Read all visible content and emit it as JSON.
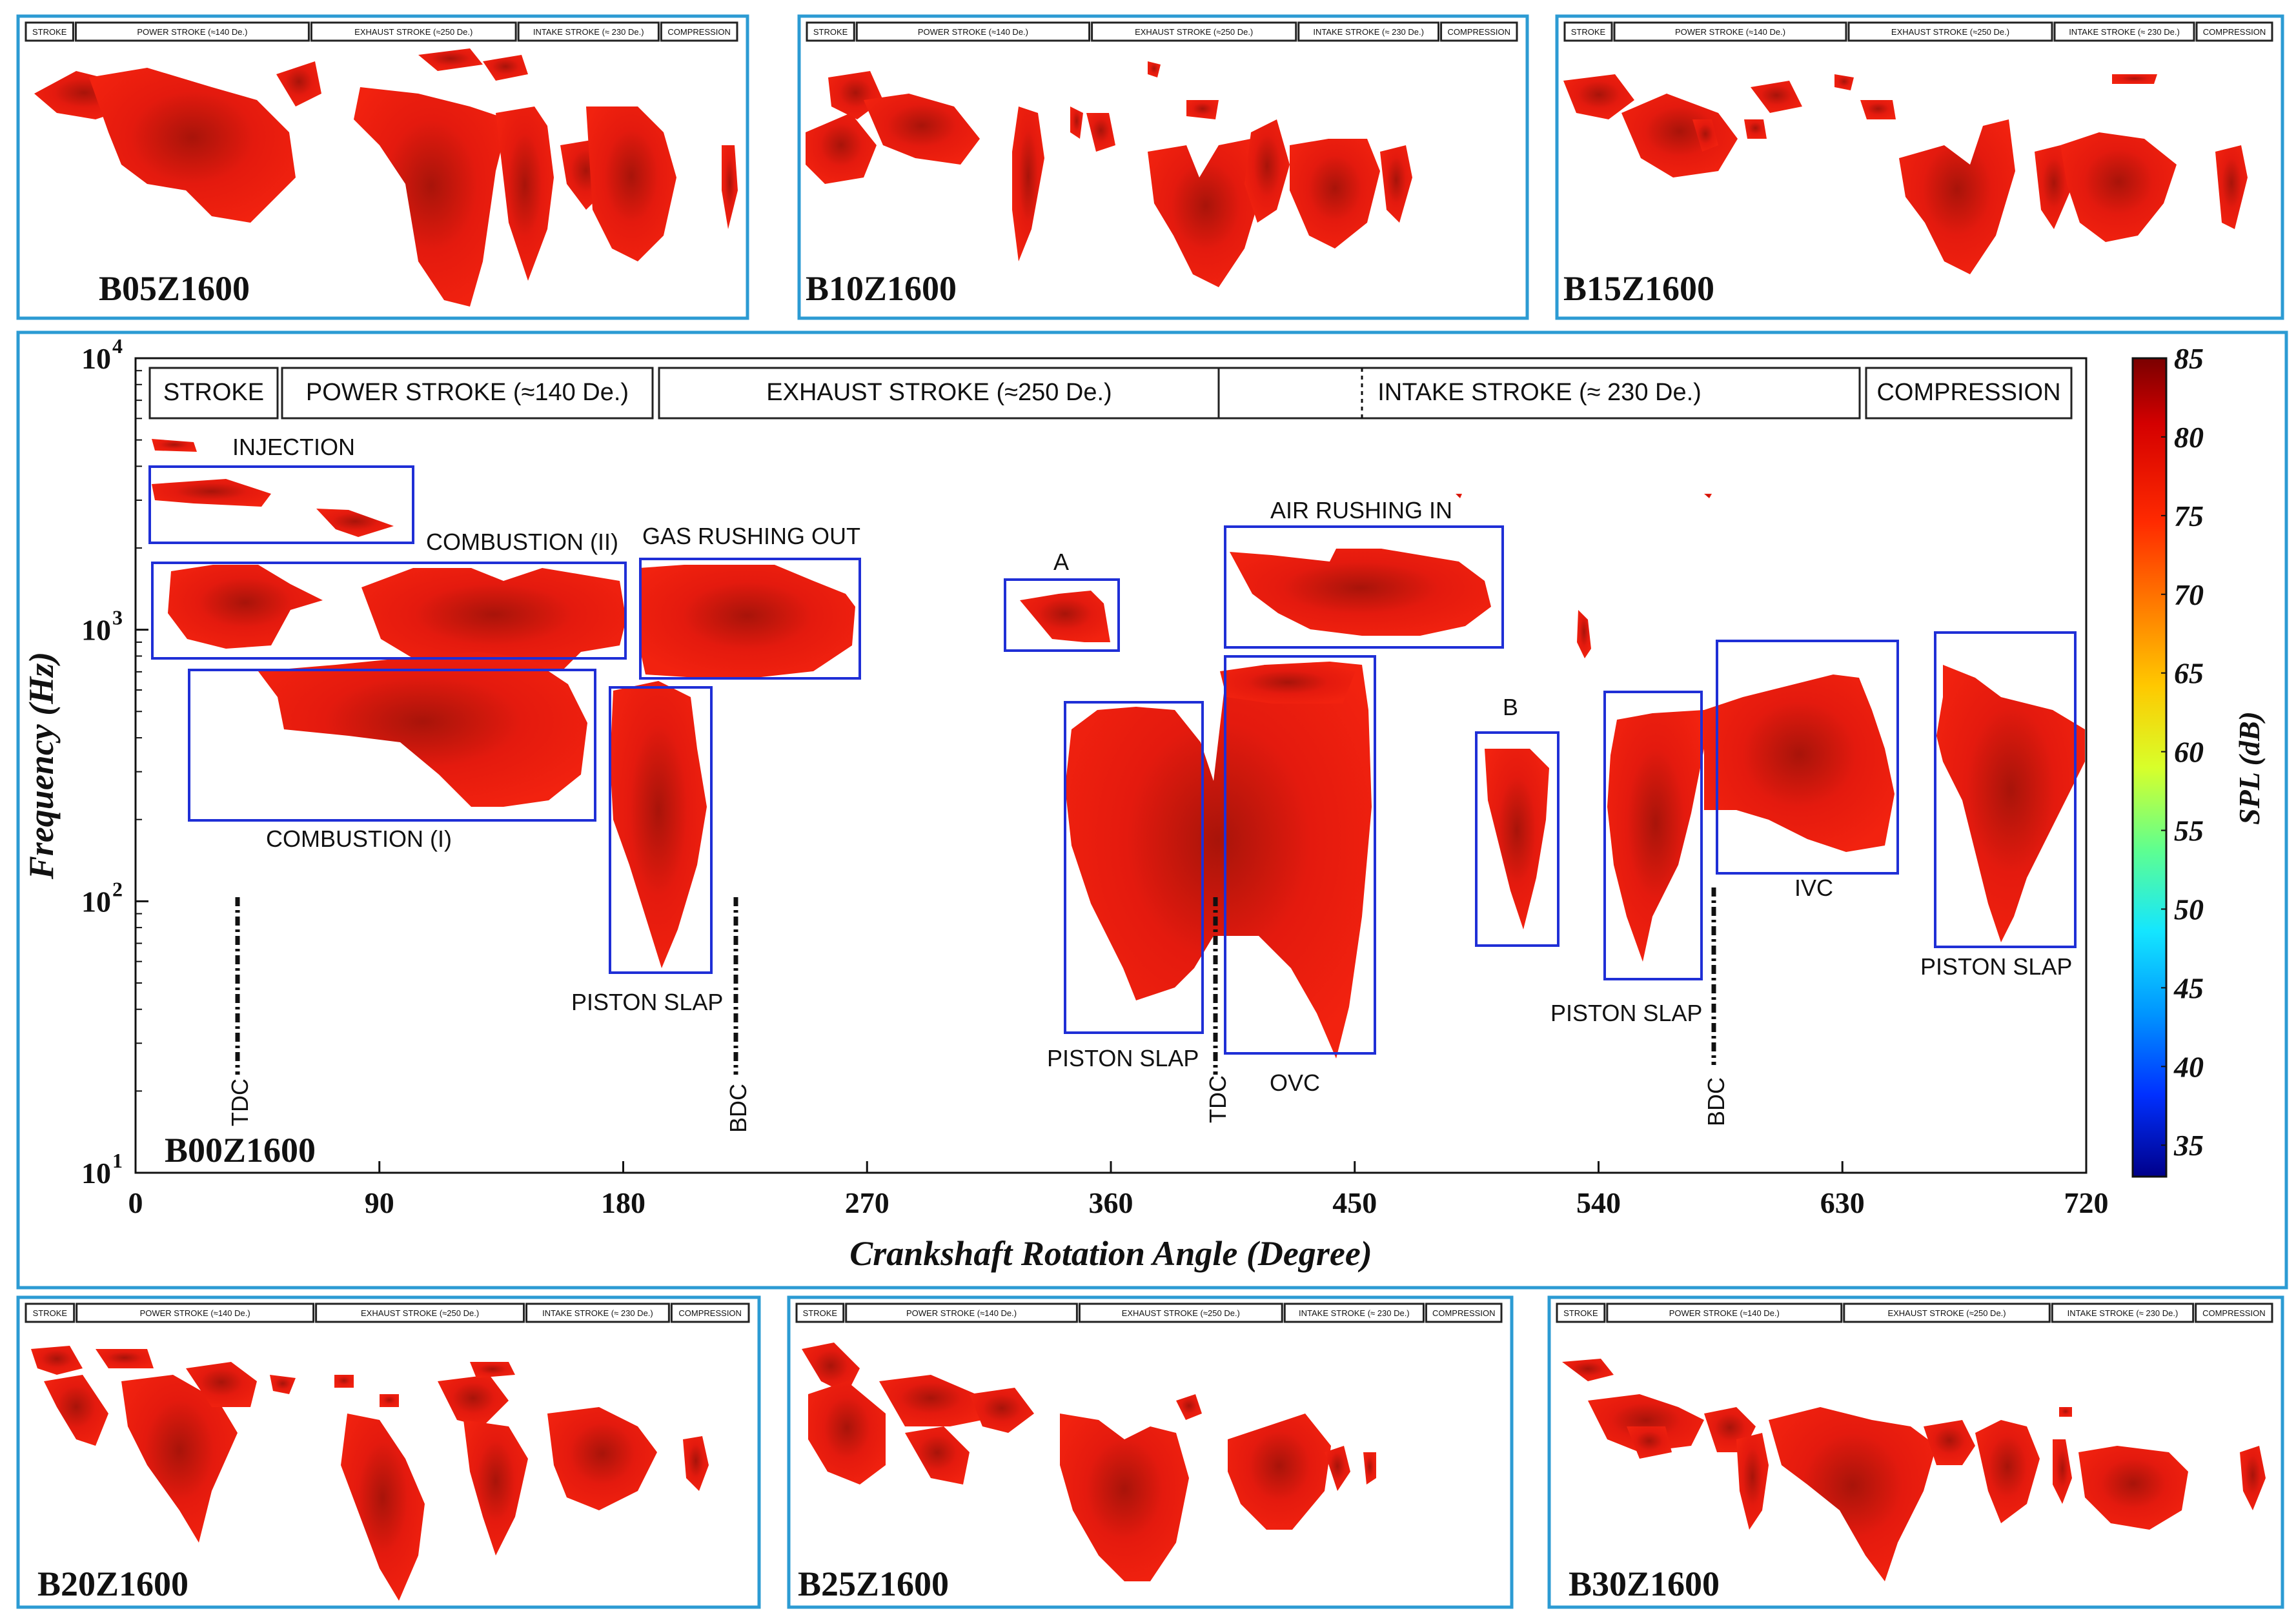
{
  "strokes": [
    "STROKE",
    "POWER STROKE (≈140 De.)",
    "EXHAUST STROKE (≈250 De.)",
    "INTAKE STROKE (≈ 230 De.)",
    "COMPRESSION"
  ],
  "small_panels": [
    {
      "label": "B05Z1600"
    },
    {
      "label": "B10Z1600"
    },
    {
      "label": "B15Z1600"
    },
    {
      "label": "B20Z1600"
    },
    {
      "label": "B25Z1600"
    },
    {
      "label": "B30Z1600"
    }
  ],
  "main_panel": {
    "label": "B00Z1600",
    "xlabel": "Crankshaft Rotation Angle (Degree)",
    "ylabel": "Frequency (Hz)",
    "annotations": {
      "injection": "INJECTION",
      "combustion_ii": "COMBUSTION (II)",
      "gas_rushing_out": "GAS RUSHING OUT",
      "combustion_i": "COMBUSTION (I)",
      "a": "A",
      "air_rushing_in": "AIR RUSHING IN",
      "b": "B",
      "ivc": "IVC",
      "ovc": "OVC",
      "piston_slap": "PISTON SLAP",
      "tdc": "TDC",
      "bdc": "BDC"
    }
  },
  "colorbar": {
    "label": "SPL (dB)",
    "ticks": [
      "85",
      "80",
      "75",
      "70",
      "65",
      "60",
      "55",
      "50",
      "45",
      "40",
      "35"
    ],
    "colors": [
      "#7a0000",
      "#d40000",
      "#ff2a00",
      "#ff7a00",
      "#ffc800",
      "#d8ff2a",
      "#5fff8f",
      "#14e6ff",
      "#0096ff",
      "#0030ff",
      "#00008a"
    ]
  },
  "chart_data": {
    "type": "heatmap",
    "title": "B00Z1600",
    "xlabel": "Crankshaft Rotation Angle (Degree)",
    "ylabel": "Frequency (Hz)",
    "xlim": [
      0,
      720
    ],
    "ylim": [
      10,
      10000
    ],
    "yscale": "log",
    "x_ticks": [
      "0",
      "90",
      "180",
      "270",
      "360",
      "450",
      "540",
      "630",
      "720"
    ],
    "y_ticks": [
      {
        "base": "10",
        "exp": "1"
      },
      {
        "base": "10",
        "exp": "2"
      },
      {
        "base": "10",
        "exp": "3"
      },
      {
        "base": "10",
        "exp": "4"
      }
    ],
    "colorbar": {
      "label": "SPL (dB)",
      "range": [
        33,
        85
      ]
    },
    "events": [
      {
        "name": "TDC",
        "angle": 38
      },
      {
        "name": "BDC",
        "angle": 222
      },
      {
        "name": "TDC",
        "angle": 398
      },
      {
        "name": "BDC",
        "angle": 582
      }
    ],
    "regions": [
      {
        "name": "INJECTION",
        "angle_range": [
          5,
          102
        ],
        "freq_range": [
          2200,
          4200
        ]
      },
      {
        "name": "COMBUSTION (II)",
        "angle_range": [
          5,
          180
        ],
        "freq_range": [
          820,
          1900
        ]
      },
      {
        "name": "GAS RUSHING OUT",
        "angle_range": [
          186,
          267
        ],
        "freq_range": [
          700,
          1880
        ]
      },
      {
        "name": "COMBUSTION (I)",
        "angle_range": [
          20,
          169
        ],
        "freq_range": [
          210,
          750
        ]
      },
      {
        "name": "PISTON SLAP",
        "angle_range": [
          174,
          212
        ],
        "freq_range": [
          58,
          650
        ]
      },
      {
        "name": "A",
        "angle_range": [
          321,
          363
        ],
        "freq_range": [
          820,
          1300
        ]
      },
      {
        "name": "AIR RUSHING IN",
        "angle_range": [
          401,
          502
        ],
        "freq_range": [
          990,
          2600
        ]
      },
      {
        "name": "PISTON SLAP",
        "angle_range": [
          341,
          392
        ],
        "freq_range": [
          35,
          540
        ]
      },
      {
        "name": "OVC",
        "angle_range": [
          401,
          457
        ],
        "freq_range": [
          30,
          800
        ]
      },
      {
        "name": "B",
        "angle_range": [
          493,
          524
        ],
        "freq_range": [
          73,
          430
        ]
      },
      {
        "name": "PISTON SLAP",
        "angle_range": [
          542,
          578
        ],
        "freq_range": [
          55,
          590
        ]
      },
      {
        "name": "IVC",
        "angle_range": [
          583,
          649
        ],
        "freq_range": [
          130,
          1000
        ]
      },
      {
        "name": "PISTON SLAP",
        "angle_range": [
          664,
          716
        ],
        "freq_range": [
          73,
          1030
        ]
      }
    ]
  }
}
